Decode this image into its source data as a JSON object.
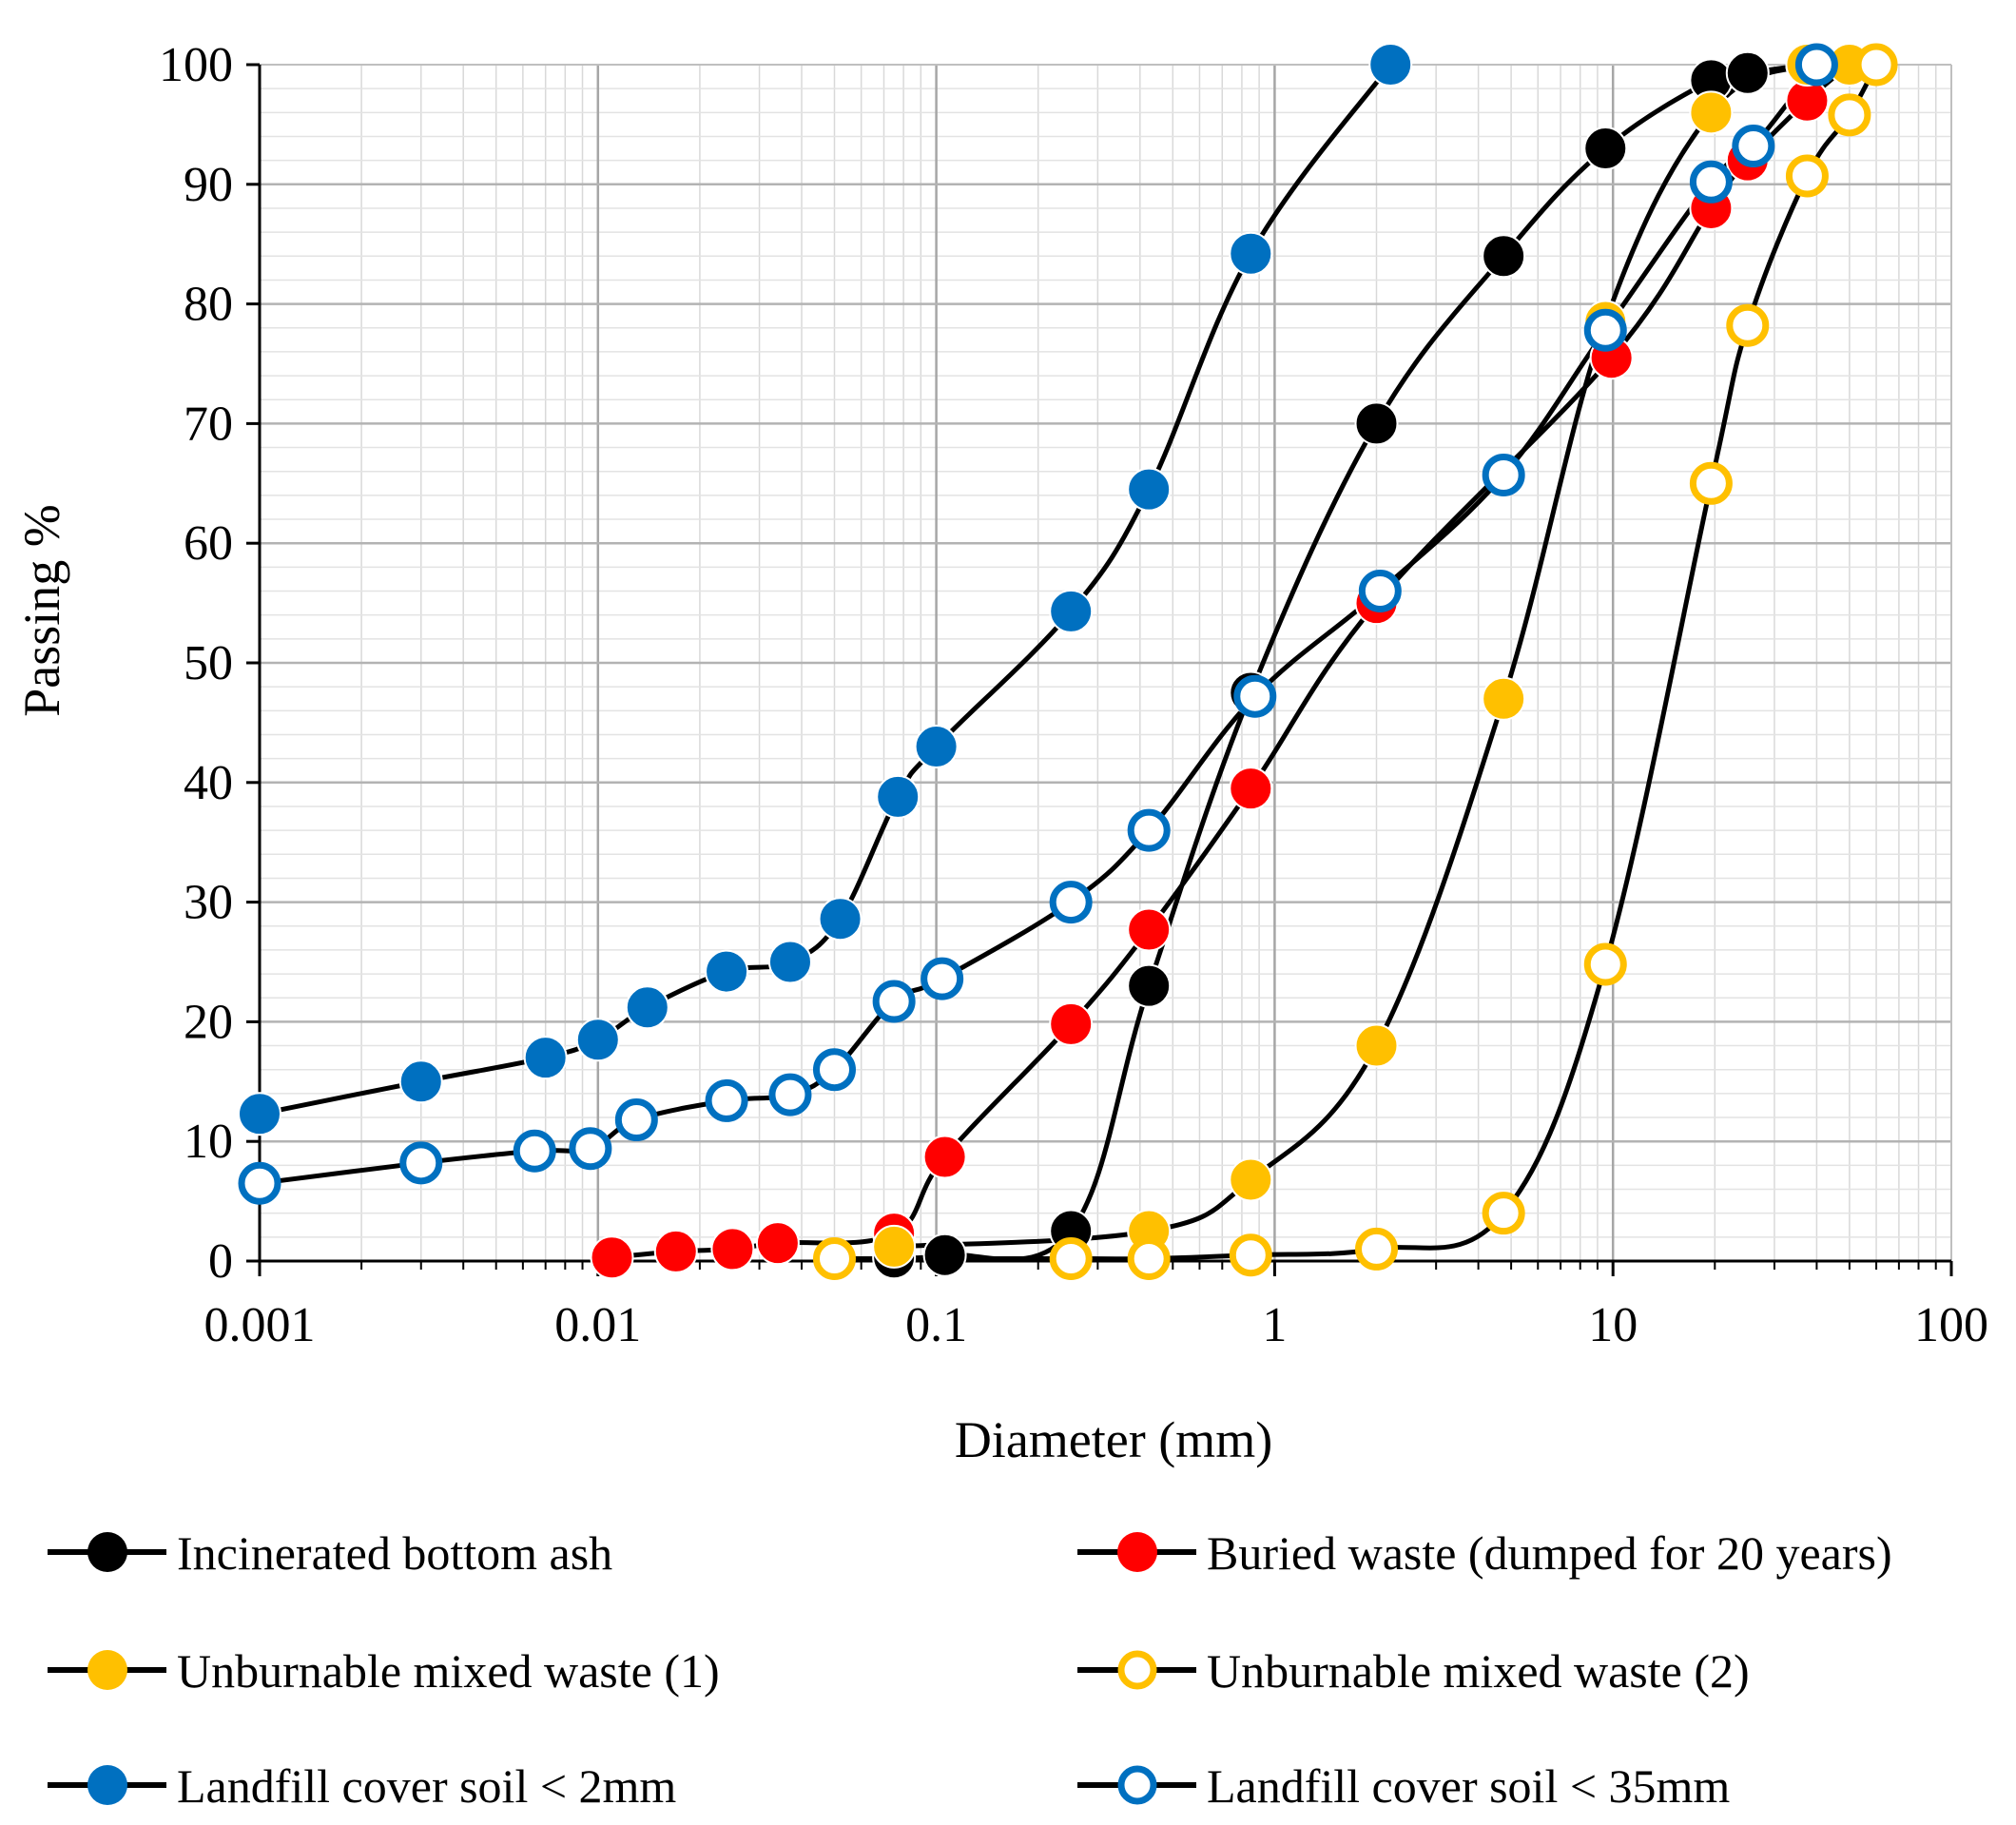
{
  "chart_data": {
    "type": "line",
    "title": "",
    "xlabel": "Diameter (mm)",
    "ylabel": "Passing %",
    "x_scale": "log",
    "xlim": [
      0.001,
      100
    ],
    "ylim": [
      0,
      100
    ],
    "x_tick_labels": [
      "0.001",
      "0.01",
      "0.1",
      "1",
      "10",
      "100"
    ],
    "y_tick_labels": [
      "0",
      "10",
      "20",
      "30",
      "40",
      "50",
      "60",
      "70",
      "80",
      "90",
      "100"
    ],
    "grid": true,
    "legend_position": "bottom",
    "series": [
      {
        "name": "Incinerated bottom ash",
        "marker": "filled",
        "color": "#000000",
        "points": [
          [
            0.075,
            0.3
          ],
          [
            0.106,
            0.5
          ],
          [
            0.25,
            2.5
          ],
          [
            0.425,
            23
          ],
          [
            0.85,
            47.5
          ],
          [
            2.0,
            70
          ],
          [
            4.75,
            84
          ],
          [
            9.5,
            93
          ],
          [
            19.5,
            98.7
          ],
          [
            25,
            99.3
          ],
          [
            37.5,
            100
          ]
        ]
      },
      {
        "name": "Buried waste (dumped for 20 years)",
        "marker": "filled",
        "color": "#ff0000",
        "points": [
          [
            0.011,
            0.3
          ],
          [
            0.017,
            0.8
          ],
          [
            0.025,
            1.0
          ],
          [
            0.034,
            1.5
          ],
          [
            0.075,
            2.3
          ],
          [
            0.106,
            8.7
          ],
          [
            0.25,
            19.8
          ],
          [
            0.425,
            27.7
          ],
          [
            0.85,
            39.5
          ],
          [
            2.0,
            55
          ],
          [
            9.9,
            75.5
          ],
          [
            19.5,
            88
          ],
          [
            25,
            92
          ],
          [
            37.5,
            97
          ],
          [
            50,
            100
          ]
        ]
      },
      {
        "name": "Unburnable mixed waste (1)",
        "marker": "filled",
        "color": "#ffc000",
        "points": [
          [
            0.075,
            1.2
          ],
          [
            0.425,
            2.5
          ],
          [
            0.85,
            6.8
          ],
          [
            2.0,
            18
          ],
          [
            4.75,
            47
          ],
          [
            9.5,
            78.5
          ],
          [
            19.5,
            96
          ],
          [
            37.5,
            100
          ],
          [
            50,
            100
          ]
        ]
      },
      {
        "name": "Unburnable mixed waste (2)",
        "marker": "open",
        "color": "#ffc000",
        "points": [
          [
            0.05,
            0.2
          ],
          [
            0.25,
            0.2
          ],
          [
            0.425,
            0.2
          ],
          [
            0.85,
            0.5
          ],
          [
            2.0,
            1.0
          ],
          [
            4.75,
            4.0
          ],
          [
            9.5,
            24.8
          ],
          [
            19.5,
            65
          ],
          [
            25,
            78.2
          ],
          [
            37.5,
            90.7
          ],
          [
            50,
            95.8
          ],
          [
            60,
            100
          ]
        ]
      },
      {
        "name": "Landfill cover soil < 2mm",
        "marker": "filled",
        "color": "#0070c0",
        "points": [
          [
            0.001,
            12.3
          ],
          [
            0.003,
            15
          ],
          [
            0.007,
            17
          ],
          [
            0.01,
            18.5
          ],
          [
            0.014,
            21.2
          ],
          [
            0.024,
            24.2
          ],
          [
            0.037,
            25
          ],
          [
            0.052,
            28.6
          ],
          [
            0.077,
            38.8
          ],
          [
            0.1,
            43
          ],
          [
            0.25,
            54.3
          ],
          [
            0.425,
            64.5
          ],
          [
            0.85,
            84.2
          ],
          [
            2.2,
            100
          ]
        ]
      },
      {
        "name": "Landfill cover soil < 35mm",
        "marker": "open",
        "color": "#0070c0",
        "points": [
          [
            0.001,
            6.5
          ],
          [
            0.003,
            8.2
          ],
          [
            0.0065,
            9.2
          ],
          [
            0.0095,
            9.4
          ],
          [
            0.013,
            11.8
          ],
          [
            0.024,
            13.4
          ],
          [
            0.037,
            13.9
          ],
          [
            0.05,
            16
          ],
          [
            0.075,
            21.7
          ],
          [
            0.104,
            23.6
          ],
          [
            0.25,
            30
          ],
          [
            0.425,
            36
          ],
          [
            0.875,
            47.2
          ],
          [
            2.05,
            56
          ],
          [
            4.75,
            65.7
          ],
          [
            9.5,
            77.8
          ],
          [
            19.5,
            90.2
          ],
          [
            26,
            93.2
          ],
          [
            40,
            100
          ]
        ]
      }
    ]
  }
}
